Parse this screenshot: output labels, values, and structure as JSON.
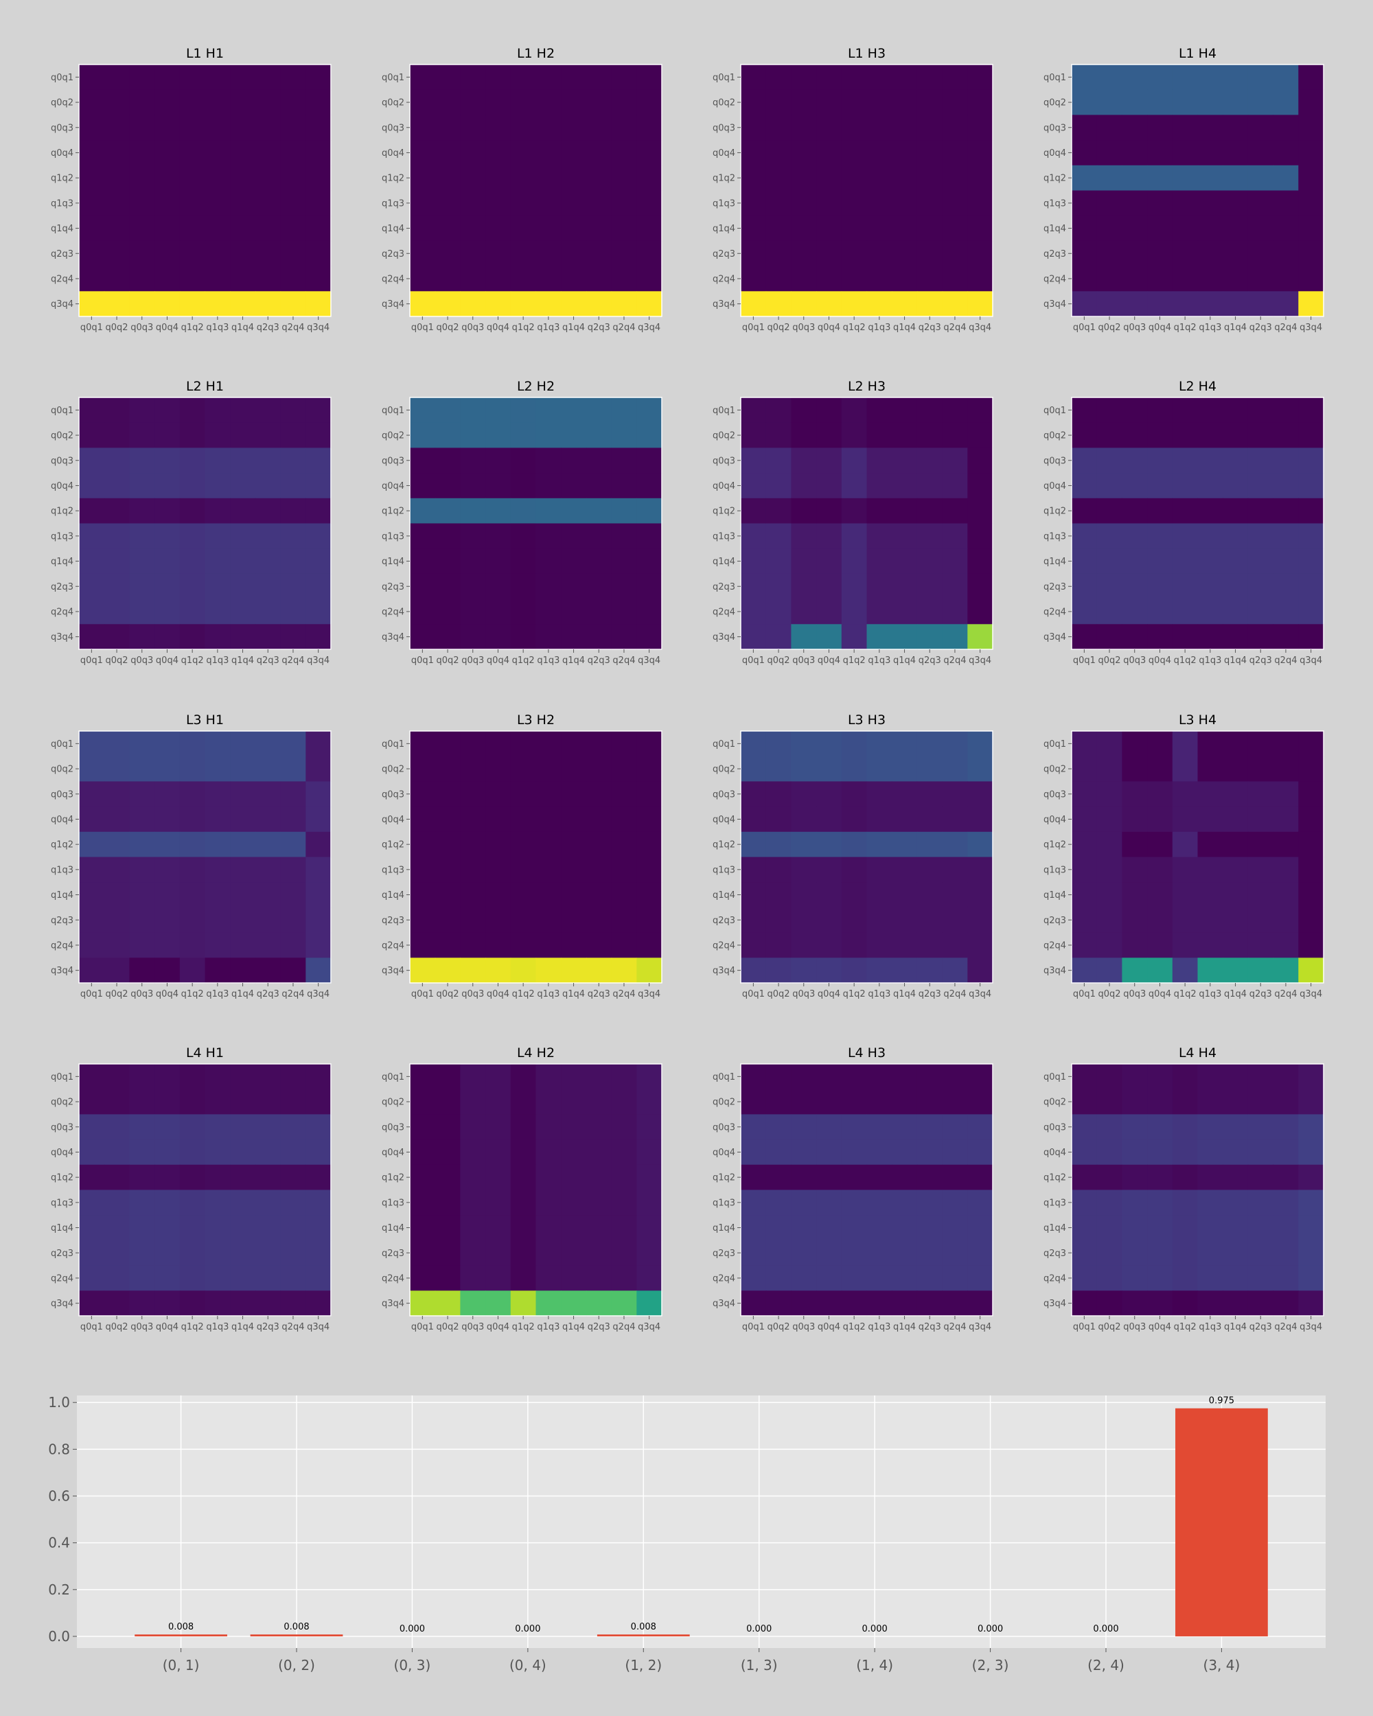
{
  "chart_data": [
    {
      "type": "heatmap",
      "title": "L1 H1",
      "x_labels": [
        "q0q1",
        "q0q2",
        "q0q3",
        "q0q4",
        "q1q2",
        "q1q3",
        "q1q4",
        "q2q3",
        "q2q4",
        "q3q4"
      ],
      "y_labels": [
        "q0q1",
        "q0q2",
        "q0q3",
        "q0q4",
        "q1q2",
        "q1q3",
        "q1q4",
        "q2q3",
        "q2q4",
        "q3q4"
      ],
      "colormap": "viridis",
      "row_values": [
        0,
        0,
        0,
        0,
        0,
        0,
        0,
        0,
        0,
        1
      ],
      "col_values": [
        0,
        0,
        0,
        0,
        0,
        0,
        0,
        0,
        0,
        0
      ],
      "special_cells": []
    },
    {
      "type": "heatmap",
      "title": "L1 H2",
      "x_labels": [
        "q0q1",
        "q0q2",
        "q0q3",
        "q0q4",
        "q1q2",
        "q1q3",
        "q1q4",
        "q2q3",
        "q2q4",
        "q3q4"
      ],
      "y_labels": [
        "q0q1",
        "q0q2",
        "q0q3",
        "q0q4",
        "q1q2",
        "q1q3",
        "q1q4",
        "q2q3",
        "q2q4",
        "q3q4"
      ],
      "colormap": "viridis",
      "row_values": [
        0,
        0,
        0,
        0,
        0,
        0,
        0,
        0,
        0,
        1
      ],
      "col_values": [
        0,
        0,
        0,
        0,
        0,
        0,
        0,
        0,
        0,
        0
      ],
      "special_cells": []
    },
    {
      "type": "heatmap",
      "title": "L1 H3",
      "x_labels": [
        "q0q1",
        "q0q2",
        "q0q3",
        "q0q4",
        "q1q2",
        "q1q3",
        "q1q4",
        "q2q3",
        "q2q4",
        "q3q4"
      ],
      "y_labels": [
        "q0q1",
        "q0q2",
        "q0q3",
        "q0q4",
        "q1q2",
        "q1q3",
        "q1q4",
        "q2q3",
        "q2q4",
        "q3q4"
      ],
      "colormap": "viridis",
      "row_values": [
        0,
        0,
        0,
        0,
        0,
        0,
        0,
        0,
        0,
        1
      ],
      "col_values": [
        0,
        0,
        0,
        0,
        0,
        0,
        0,
        0,
        0,
        0
      ],
      "special_cells": []
    },
    {
      "type": "heatmap",
      "title": "L1 H4",
      "x_labels": [
        "q0q1",
        "q0q2",
        "q0q3",
        "q0q4",
        "q1q2",
        "q1q3",
        "q1q4",
        "q2q3",
        "q2q4",
        "q3q4"
      ],
      "y_labels": [
        "q0q1",
        "q0q2",
        "q0q3",
        "q0q4",
        "q1q2",
        "q1q3",
        "q1q4",
        "q2q3",
        "q2q4",
        "q3q4"
      ],
      "colormap": "viridis",
      "row_values": [
        0.3,
        0.3,
        0,
        0,
        0.3,
        0,
        0,
        0,
        0,
        0.1
      ],
      "col_values": [
        0,
        0,
        0,
        0,
        0,
        0,
        0,
        0,
        0,
        0
      ],
      "special_cells": [
        [
          0,
          9,
          0
        ],
        [
          1,
          9,
          0
        ],
        [
          4,
          9,
          0
        ],
        [
          9,
          9,
          1
        ]
      ]
    },
    {
      "type": "heatmap",
      "title": "L2 H1",
      "x_labels": [
        "q0q1",
        "q0q2",
        "q0q3",
        "q0q4",
        "q1q2",
        "q1q3",
        "q1q4",
        "q2q3",
        "q2q4",
        "q3q4"
      ],
      "y_labels": [
        "q0q1",
        "q0q2",
        "q0q3",
        "q0q4",
        "q1q2",
        "q1q3",
        "q1q4",
        "q2q3",
        "q2q4",
        "q3q4"
      ],
      "colormap": "viridis",
      "row_values": [
        0.02,
        0.02,
        0.15,
        0.15,
        0.02,
        0.15,
        0.15,
        0.15,
        0.15,
        0.02
      ],
      "col_values": [
        0,
        0,
        0.01,
        0.01,
        0,
        0.01,
        0.01,
        0.01,
        0.01,
        0.01
      ],
      "special_cells": []
    },
    {
      "type": "heatmap",
      "title": "L2 H2",
      "x_labels": [
        "q0q1",
        "q0q2",
        "q0q3",
        "q0q4",
        "q1q2",
        "q1q3",
        "q1q4",
        "q2q3",
        "q2q4",
        "q3q4"
      ],
      "y_labels": [
        "q0q1",
        "q0q2",
        "q0q3",
        "q0q4",
        "q1q2",
        "q1q3",
        "q1q4",
        "q2q3",
        "q2q4",
        "q3q4"
      ],
      "colormap": "viridis",
      "row_values": [
        0.33,
        0.33,
        0,
        0,
        0.33,
        0,
        0,
        0,
        0,
        0
      ],
      "col_values": [
        0,
        0,
        0.005,
        0.005,
        0,
        0.005,
        0.005,
        0.005,
        0.005,
        0.005
      ],
      "special_cells": []
    },
    {
      "type": "heatmap",
      "title": "L2 H3",
      "x_labels": [
        "q0q1",
        "q0q2",
        "q0q3",
        "q0q4",
        "q1q2",
        "q1q3",
        "q1q4",
        "q2q3",
        "q2q4",
        "q3q4"
      ],
      "y_labels": [
        "q0q1",
        "q0q2",
        "q0q3",
        "q0q4",
        "q1q2",
        "q1q3",
        "q1q4",
        "q2q3",
        "q2q4",
        "q3q4"
      ],
      "colormap": "viridis",
      "row_values": [
        0,
        0,
        0.1,
        0.1,
        0,
        0.1,
        0.1,
        0.1,
        0.1,
        0.1
      ],
      "col_values": [
        0.02,
        0.02,
        -0.03,
        -0.03,
        0.02,
        -0.03,
        -0.03,
        -0.03,
        -0.03,
        -0.1
      ],
      "special_cells": [
        [
          9,
          2,
          0.4
        ],
        [
          9,
          3,
          0.4
        ],
        [
          9,
          5,
          0.4
        ],
        [
          9,
          6,
          0.4
        ],
        [
          9,
          7,
          0.4
        ],
        [
          9,
          8,
          0.4
        ],
        [
          9,
          9,
          0.85
        ]
      ]
    },
    {
      "type": "heatmap",
      "title": "L2 H4",
      "x_labels": [
        "q0q1",
        "q0q2",
        "q0q3",
        "q0q4",
        "q1q2",
        "q1q3",
        "q1q4",
        "q2q3",
        "q2q4",
        "q3q4"
      ],
      "y_labels": [
        "q0q1",
        "q0q2",
        "q0q3",
        "q0q4",
        "q1q2",
        "q1q3",
        "q1q4",
        "q2q3",
        "q2q4",
        "q3q4"
      ],
      "colormap": "viridis",
      "row_values": [
        0,
        0,
        0.16,
        0.16,
        0,
        0.16,
        0.16,
        0.16,
        0.16,
        0
      ],
      "col_values": [
        0,
        0,
        0,
        0,
        0,
        0,
        0,
        0,
        0,
        0
      ],
      "special_cells": []
    },
    {
      "type": "heatmap",
      "title": "L3 H1",
      "x_labels": [
        "q0q1",
        "q0q2",
        "q0q3",
        "q0q4",
        "q1q2",
        "q1q3",
        "q1q4",
        "q2q3",
        "q2q4",
        "q3q4"
      ],
      "y_labels": [
        "q0q1",
        "q0q2",
        "q0q3",
        "q0q4",
        "q1q2",
        "q1q3",
        "q1q4",
        "q2q3",
        "q2q4",
        "q3q4"
      ],
      "colormap": "viridis",
      "row_values": [
        0.22,
        0.22,
        0.07,
        0.07,
        0.22,
        0.07,
        0.07,
        0.07,
        0.07,
        0.05
      ],
      "col_values": [
        0,
        0,
        0.005,
        0.005,
        0,
        0.005,
        0.005,
        0.005,
        0.005,
        0.005
      ],
      "special_cells": [
        [
          0,
          9,
          0.07
        ],
        [
          1,
          9,
          0.07
        ],
        [
          4,
          9,
          0.06
        ],
        [
          2,
          9,
          0.12
        ],
        [
          3,
          9,
          0.12
        ],
        [
          5,
          9,
          0.11
        ],
        [
          6,
          9,
          0.11
        ],
        [
          7,
          9,
          0.11
        ],
        [
          8,
          9,
          0.11
        ],
        [
          9,
          9,
          0.22
        ],
        [
          9,
          2,
          0
        ],
        [
          9,
          3,
          0
        ],
        [
          9,
          5,
          0
        ],
        [
          9,
          6,
          0
        ],
        [
          9,
          7,
          0
        ],
        [
          9,
          8,
          0
        ]
      ]
    },
    {
      "type": "heatmap",
      "title": "L3 H2",
      "x_labels": [
        "q0q1",
        "q0q2",
        "q0q3",
        "q0q4",
        "q1q2",
        "q1q3",
        "q1q4",
        "q2q3",
        "q2q4",
        "q3q4"
      ],
      "y_labels": [
        "q0q1",
        "q0q2",
        "q0q3",
        "q0q4",
        "q1q2",
        "q1q3",
        "q1q4",
        "q2q3",
        "q2q4",
        "q3q4"
      ],
      "colormap": "viridis",
      "row_values": [
        0,
        0,
        0,
        0,
        0,
        0,
        0,
        0,
        0,
        0.97
      ],
      "col_values": [
        0,
        0,
        0,
        0,
        0,
        0,
        0,
        0,
        0,
        0
      ],
      "special_cells": [
        [
          9,
          4,
          0.96
        ],
        [
          9,
          5,
          0.97
        ],
        [
          9,
          9,
          0.93
        ]
      ]
    },
    {
      "type": "heatmap",
      "title": "L3 H3",
      "x_labels": [
        "q0q1",
        "q0q2",
        "q0q3",
        "q0q4",
        "q1q2",
        "q1q3",
        "q1q4",
        "q2q3",
        "q2q4",
        "q3q4"
      ],
      "y_labels": [
        "q0q1",
        "q0q2",
        "q0q3",
        "q0q4",
        "q1q2",
        "q1q3",
        "q1q4",
        "q2q3",
        "q2q4",
        "q3q4"
      ],
      "colormap": "viridis",
      "row_values": [
        0.24,
        0.24,
        0.04,
        0.04,
        0.24,
        0.04,
        0.04,
        0.04,
        0.04,
        0.16
      ],
      "col_values": [
        0,
        0,
        0.01,
        0.01,
        0,
        0.01,
        0.01,
        0.01,
        0.01,
        0.01
      ],
      "special_cells": [
        [
          0,
          9,
          0.27
        ],
        [
          1,
          9,
          0.27
        ],
        [
          4,
          9,
          0.27
        ],
        [
          9,
          9,
          0.05
        ]
      ]
    },
    {
      "type": "heatmap",
      "title": "L3 H4",
      "x_labels": [
        "q0q1",
        "q0q2",
        "q0q3",
        "q0q4",
        "q1q2",
        "q1q3",
        "q1q4",
        "q2q3",
        "q2q4",
        "q3q4"
      ],
      "y_labels": [
        "q0q1",
        "q0q2",
        "q0q3",
        "q0q4",
        "q1q2",
        "q1q3",
        "q1q4",
        "q2q3",
        "q2q4",
        "q3q4"
      ],
      "colormap": "viridis",
      "row_values": [
        0.06,
        0.06,
        0.06,
        0.06,
        0.06,
        0.06,
        0.06,
        0.06,
        0.06,
        0.18
      ],
      "col_values": [
        0,
        0,
        0,
        0,
        0,
        0,
        0,
        0,
        0,
        0
      ],
      "special_cells": [
        [
          0,
          2,
          0
        ],
        [
          0,
          3,
          0
        ],
        [
          1,
          2,
          0
        ],
        [
          1,
          3,
          0
        ],
        [
          4,
          2,
          0
        ],
        [
          4,
          3,
          0
        ],
        [
          0,
          4,
          0.1
        ],
        [
          1,
          4,
          0.1
        ],
        [
          4,
          4,
          0.1
        ],
        [
          0,
          5,
          0
        ],
        [
          0,
          6,
          0
        ],
        [
          0,
          7,
          0
        ],
        [
          0,
          8,
          0
        ],
        [
          1,
          5,
          0
        ],
        [
          1,
          6,
          0
        ],
        [
          1,
          7,
          0
        ],
        [
          1,
          8,
          0
        ],
        [
          4,
          5,
          0
        ],
        [
          4,
          6,
          0
        ],
        [
          4,
          7,
          0
        ],
        [
          4,
          8,
          0
        ],
        [
          0,
          9,
          0
        ],
        [
          1,
          9,
          0
        ],
        [
          2,
          9,
          0
        ],
        [
          3,
          9,
          0
        ],
        [
          4,
          9,
          0
        ],
        [
          5,
          9,
          0
        ],
        [
          6,
          9,
          0
        ],
        [
          7,
          9,
          0
        ],
        [
          8,
          9,
          0
        ],
        [
          9,
          2,
          0.55
        ],
        [
          9,
          3,
          0.55
        ],
        [
          9,
          5,
          0.55
        ],
        [
          9,
          6,
          0.55
        ],
        [
          9,
          7,
          0.55
        ],
        [
          9,
          8,
          0.55
        ],
        [
          9,
          9,
          0.9
        ],
        [
          2,
          2,
          0.04
        ],
        [
          2,
          3,
          0.04
        ],
        [
          3,
          2,
          0.04
        ],
        [
          3,
          3,
          0.04
        ],
        [
          5,
          2,
          0.04
        ],
        [
          5,
          3,
          0.04
        ],
        [
          6,
          2,
          0.04
        ],
        [
          6,
          3,
          0.04
        ],
        [
          7,
          2,
          0.04
        ],
        [
          7,
          3,
          0.04
        ],
        [
          8,
          2,
          0.04
        ],
        [
          8,
          3,
          0.04
        ]
      ]
    },
    {
      "type": "heatmap",
      "title": "L4 H1",
      "x_labels": [
        "q0q1",
        "q0q2",
        "q0q3",
        "q0q4",
        "q1q2",
        "q1q3",
        "q1q4",
        "q2q3",
        "q2q4",
        "q3q4"
      ],
      "y_labels": [
        "q0q1",
        "q0q2",
        "q0q3",
        "q0q4",
        "q1q2",
        "q1q3",
        "q1q4",
        "q2q3",
        "q2q4",
        "q3q4"
      ],
      "colormap": "viridis",
      "row_values": [
        0.02,
        0.02,
        0.16,
        0.16,
        0.02,
        0.16,
        0.16,
        0.16,
        0.16,
        0.02
      ],
      "col_values": [
        0,
        0,
        0.01,
        0.01,
        0,
        0.005,
        0.005,
        0.005,
        0.005,
        0.005
      ],
      "special_cells": []
    },
    {
      "type": "heatmap",
      "title": "L4 H2",
      "x_labels": [
        "q0q1",
        "q0q2",
        "q0q3",
        "q0q4",
        "q1q2",
        "q1q3",
        "q1q4",
        "q2q3",
        "q2q4",
        "q3q4"
      ],
      "y_labels": [
        "q0q1",
        "q0q2",
        "q0q3",
        "q0q4",
        "q1q2",
        "q1q3",
        "q1q4",
        "q2q3",
        "q2q4",
        "q3q4"
      ],
      "colormap": "viridis",
      "row_values": [
        0,
        0,
        0,
        0,
        0,
        0,
        0,
        0,
        0,
        0.75
      ],
      "col_values": [
        0,
        0,
        0.04,
        0.04,
        0.01,
        0.04,
        0.04,
        0.04,
        0.04,
        0.06
      ],
      "special_cells": [
        [
          9,
          0,
          0.88
        ],
        [
          9,
          1,
          0.88
        ],
        [
          9,
          4,
          0.88
        ],
        [
          9,
          2,
          0.72
        ],
        [
          9,
          3,
          0.72
        ],
        [
          9,
          5,
          0.72
        ],
        [
          9,
          6,
          0.72
        ],
        [
          9,
          7,
          0.72
        ],
        [
          9,
          8,
          0.72
        ],
        [
          9,
          9,
          0.58
        ]
      ]
    },
    {
      "type": "heatmap",
      "title": "L4 H3",
      "x_labels": [
        "q0q1",
        "q0q2",
        "q0q3",
        "q0q4",
        "q1q2",
        "q1q3",
        "q1q4",
        "q2q3",
        "q2q4",
        "q3q4"
      ],
      "y_labels": [
        "q0q1",
        "q0q2",
        "q0q3",
        "q0q4",
        "q1q2",
        "q1q3",
        "q1q4",
        "q2q3",
        "q2q4",
        "q3q4"
      ],
      "colormap": "viridis",
      "row_values": [
        0.01,
        0.01,
        0.17,
        0.17,
        0.01,
        0.17,
        0.17,
        0.17,
        0.17,
        0.01
      ],
      "col_values": [
        0,
        0,
        0,
        0,
        0,
        0,
        0,
        0,
        0,
        0
      ],
      "special_cells": []
    },
    {
      "type": "heatmap",
      "title": "L4 H4",
      "x_labels": [
        "q0q1",
        "q0q2",
        "q0q3",
        "q0q4",
        "q1q2",
        "q1q3",
        "q1q4",
        "q2q3",
        "q2q4",
        "q3q4"
      ],
      "y_labels": [
        "q0q1",
        "q0q2",
        "q0q3",
        "q0q4",
        "q1q2",
        "q1q3",
        "q1q4",
        "q2q3",
        "q2q4",
        "q3q4"
      ],
      "colormap": "viridis",
      "row_values": [
        0.02,
        0.02,
        0.16,
        0.16,
        0.02,
        0.16,
        0.16,
        0.16,
        0.16,
        0
      ],
      "col_values": [
        0,
        0,
        0.01,
        0.01,
        0,
        0.01,
        0.01,
        0.01,
        0.01,
        0.03
      ],
      "special_cells": []
    },
    {
      "type": "bar",
      "title": "",
      "xlabel": "",
      "ylabel": "",
      "categories": [
        "(0, 1)",
        "(0, 2)",
        "(0, 3)",
        "(0, 4)",
        "(1, 2)",
        "(1, 3)",
        "(1, 4)",
        "(2, 3)",
        "(2, 4)",
        "(3, 4)"
      ],
      "values": [
        0.008,
        0.008,
        0.0,
        0.0,
        0.008,
        0.0,
        0.0,
        0.0,
        0.0,
        0.975
      ],
      "value_labels": [
        "0.008",
        "0.008",
        "0.000",
        "0.000",
        "0.008",
        "0.000",
        "0.000",
        "0.000",
        "0.000",
        "0.975"
      ],
      "ylim": [
        -0.05,
        1.03
      ],
      "yticks": [
        0.0,
        0.2,
        0.4,
        0.6,
        0.8,
        1.0
      ],
      "ytick_labels": [
        "0.0",
        "0.2",
        "0.4",
        "0.6",
        "0.8",
        "1.0"
      ],
      "grid": true,
      "bar_color": "#e24a33"
    }
  ]
}
